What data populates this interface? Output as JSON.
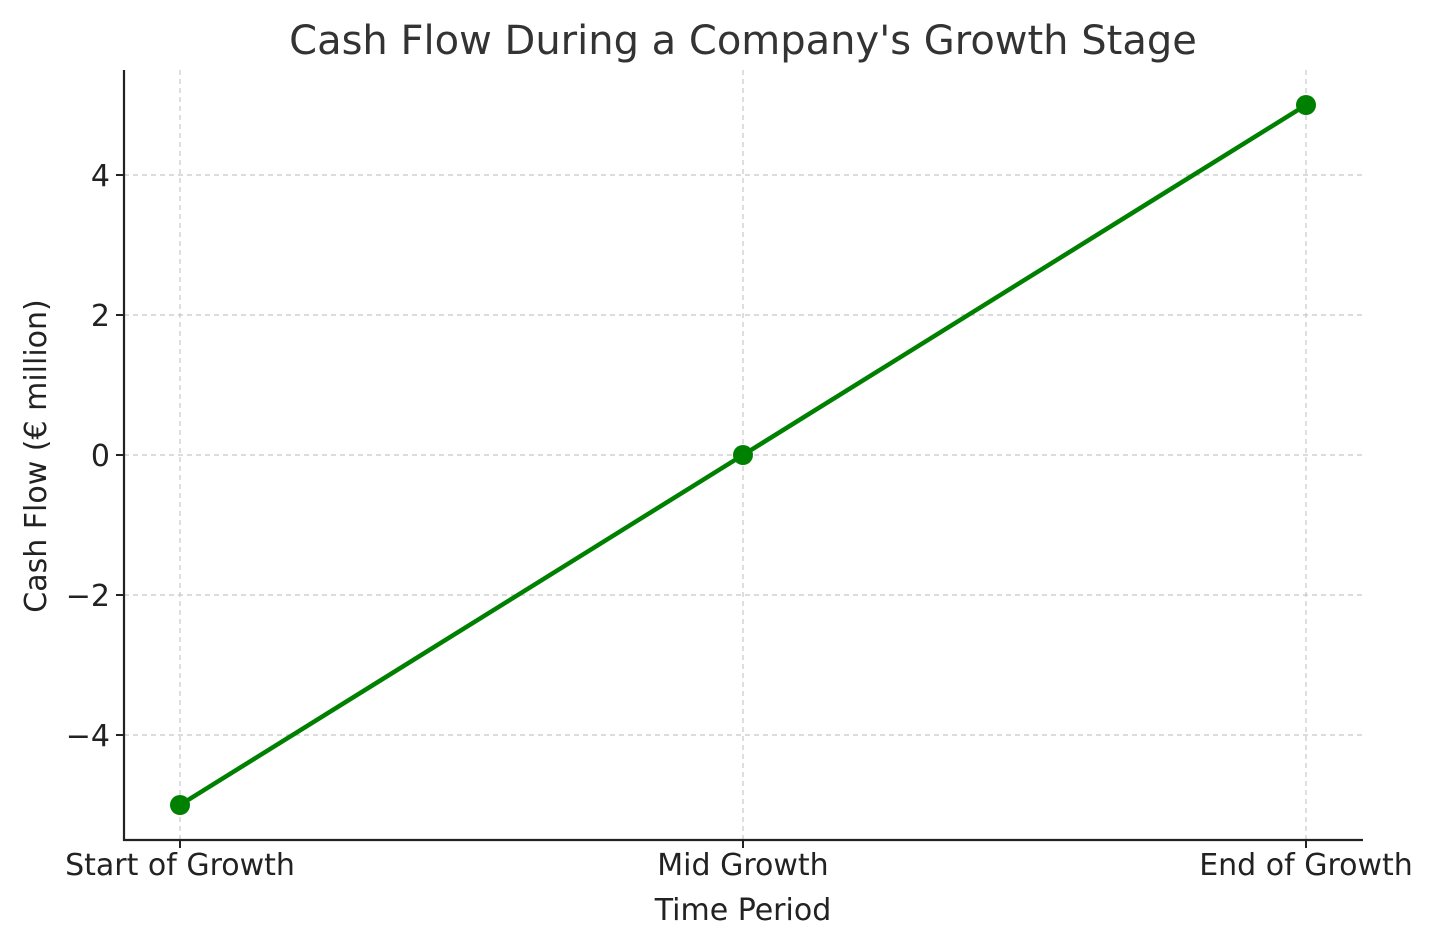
{
  "chart_data": {
    "type": "line",
    "title": "Cash Flow During a Company's Growth Stage",
    "xlabel": "Time Period",
    "ylabel": "Cash Flow (€ million)",
    "categories": [
      "Start of Growth",
      "Mid Growth",
      "End of Growth"
    ],
    "series": [
      {
        "values": [
          -5,
          0,
          5
        ],
        "color": "#008000",
        "marker": "circle"
      }
    ],
    "ylim": [
      -5.5,
      5.5
    ],
    "yticks": [
      -4,
      -2,
      0,
      2,
      4
    ],
    "ytick_labels": [
      "−4",
      "−2",
      "0",
      "2",
      "4"
    ],
    "grid": true,
    "grid_style": "dashed"
  }
}
